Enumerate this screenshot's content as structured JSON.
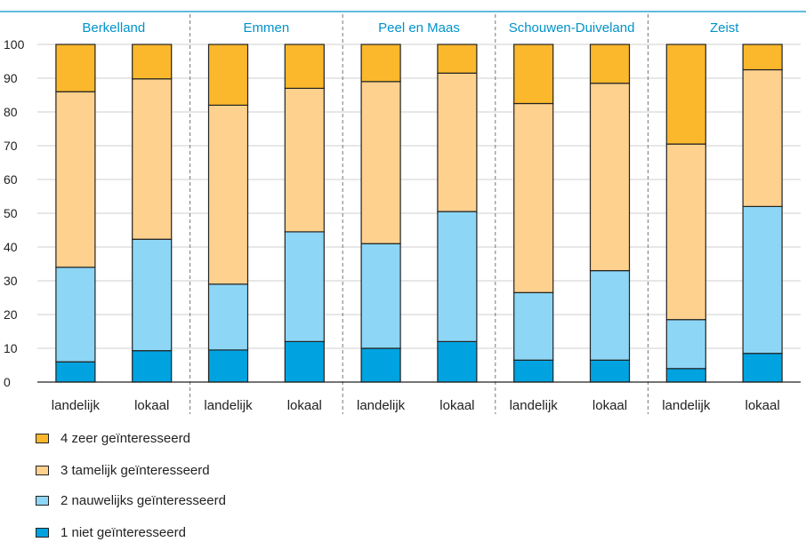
{
  "chart_data": {
    "type": "bar",
    "stacked": true,
    "groups": [
      "Berkelland",
      "Emmen",
      "Peel en Maas",
      "Schouwen-Duiveland",
      "Zeist"
    ],
    "categories": [
      "landelijk",
      "lokaal"
    ],
    "ylim": [
      0,
      100
    ],
    "yticks": [
      0,
      10,
      20,
      30,
      40,
      50,
      60,
      70,
      80,
      90,
      100
    ],
    "grid": true,
    "legend_placement": "bottom-left",
    "series": [
      {
        "name": "1 niet geïnteresseerd",
        "color": "#00a3e0",
        "values": [
          [
            6,
            9.3
          ],
          [
            9.5,
            12
          ],
          [
            10,
            12
          ],
          [
            6.5,
            6.5
          ],
          [
            4,
            8.5
          ]
        ]
      },
      {
        "name": "2 nauwelijks geïnteresseerd",
        "color": "#8dd6f6",
        "values": [
          [
            28,
            33
          ],
          [
            19.5,
            32.5
          ],
          [
            31,
            38.5
          ],
          [
            20,
            26.5
          ],
          [
            14.5,
            43.5
          ]
        ]
      },
      {
        "name": "3 tamelijk geïnteresseerd",
        "color": "#fed18e",
        "values": [
          [
            52,
            47.5
          ],
          [
            53,
            42.5
          ],
          [
            48,
            41
          ],
          [
            56,
            55.5
          ],
          [
            52,
            40.5
          ]
        ]
      },
      {
        "name": "4 zeer geïnteresseerd",
        "color": "#fbb82c",
        "values": [
          [
            14,
            10.2
          ],
          [
            18,
            13
          ],
          [
            11,
            8.5
          ],
          [
            17.5,
            11.5
          ],
          [
            29.5,
            7.5
          ]
        ]
      }
    ]
  }
}
